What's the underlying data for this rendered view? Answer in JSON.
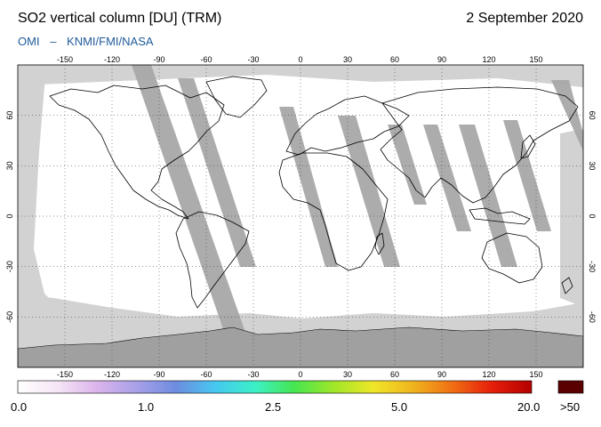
{
  "header": {
    "title": "SO2 vertical column [DU] (TRM)",
    "date": "2 September 2020",
    "source_instrument": "OMI",
    "source_sep": "–",
    "source_orgs": "KNMI/FMI/NASA",
    "source_color": "#1f5a9a"
  },
  "map": {
    "lon_ticks": [
      "-150",
      "-120",
      "-90",
      "-60",
      "-30",
      "0",
      "30",
      "60",
      "90",
      "120",
      "150"
    ],
    "lat_ticks": [
      "60",
      "30",
      "0",
      "-30",
      "-60"
    ],
    "colors": {
      "background": "#ffffff",
      "no_data": "#d2d2d2",
      "swath_gap": "#a8a8a8",
      "antarctica": "#a0a0a0",
      "coastline": "#000000"
    }
  },
  "colorbar": {
    "labels": [
      "0.0",
      "1.0",
      "2.5",
      "5.0",
      "20.0"
    ],
    "overflow_label": ">50",
    "overflow_color": "#5a0000",
    "stops": [
      "#ffffff",
      "#f6e6f6",
      "#dcb4ec",
      "#a8a0e8",
      "#6e8ce0",
      "#46c8f0",
      "#3cf0c8",
      "#46e650",
      "#a0e628",
      "#f0e628",
      "#f0b41e",
      "#f06e14",
      "#e61e0a",
      "#b40000"
    ]
  }
}
